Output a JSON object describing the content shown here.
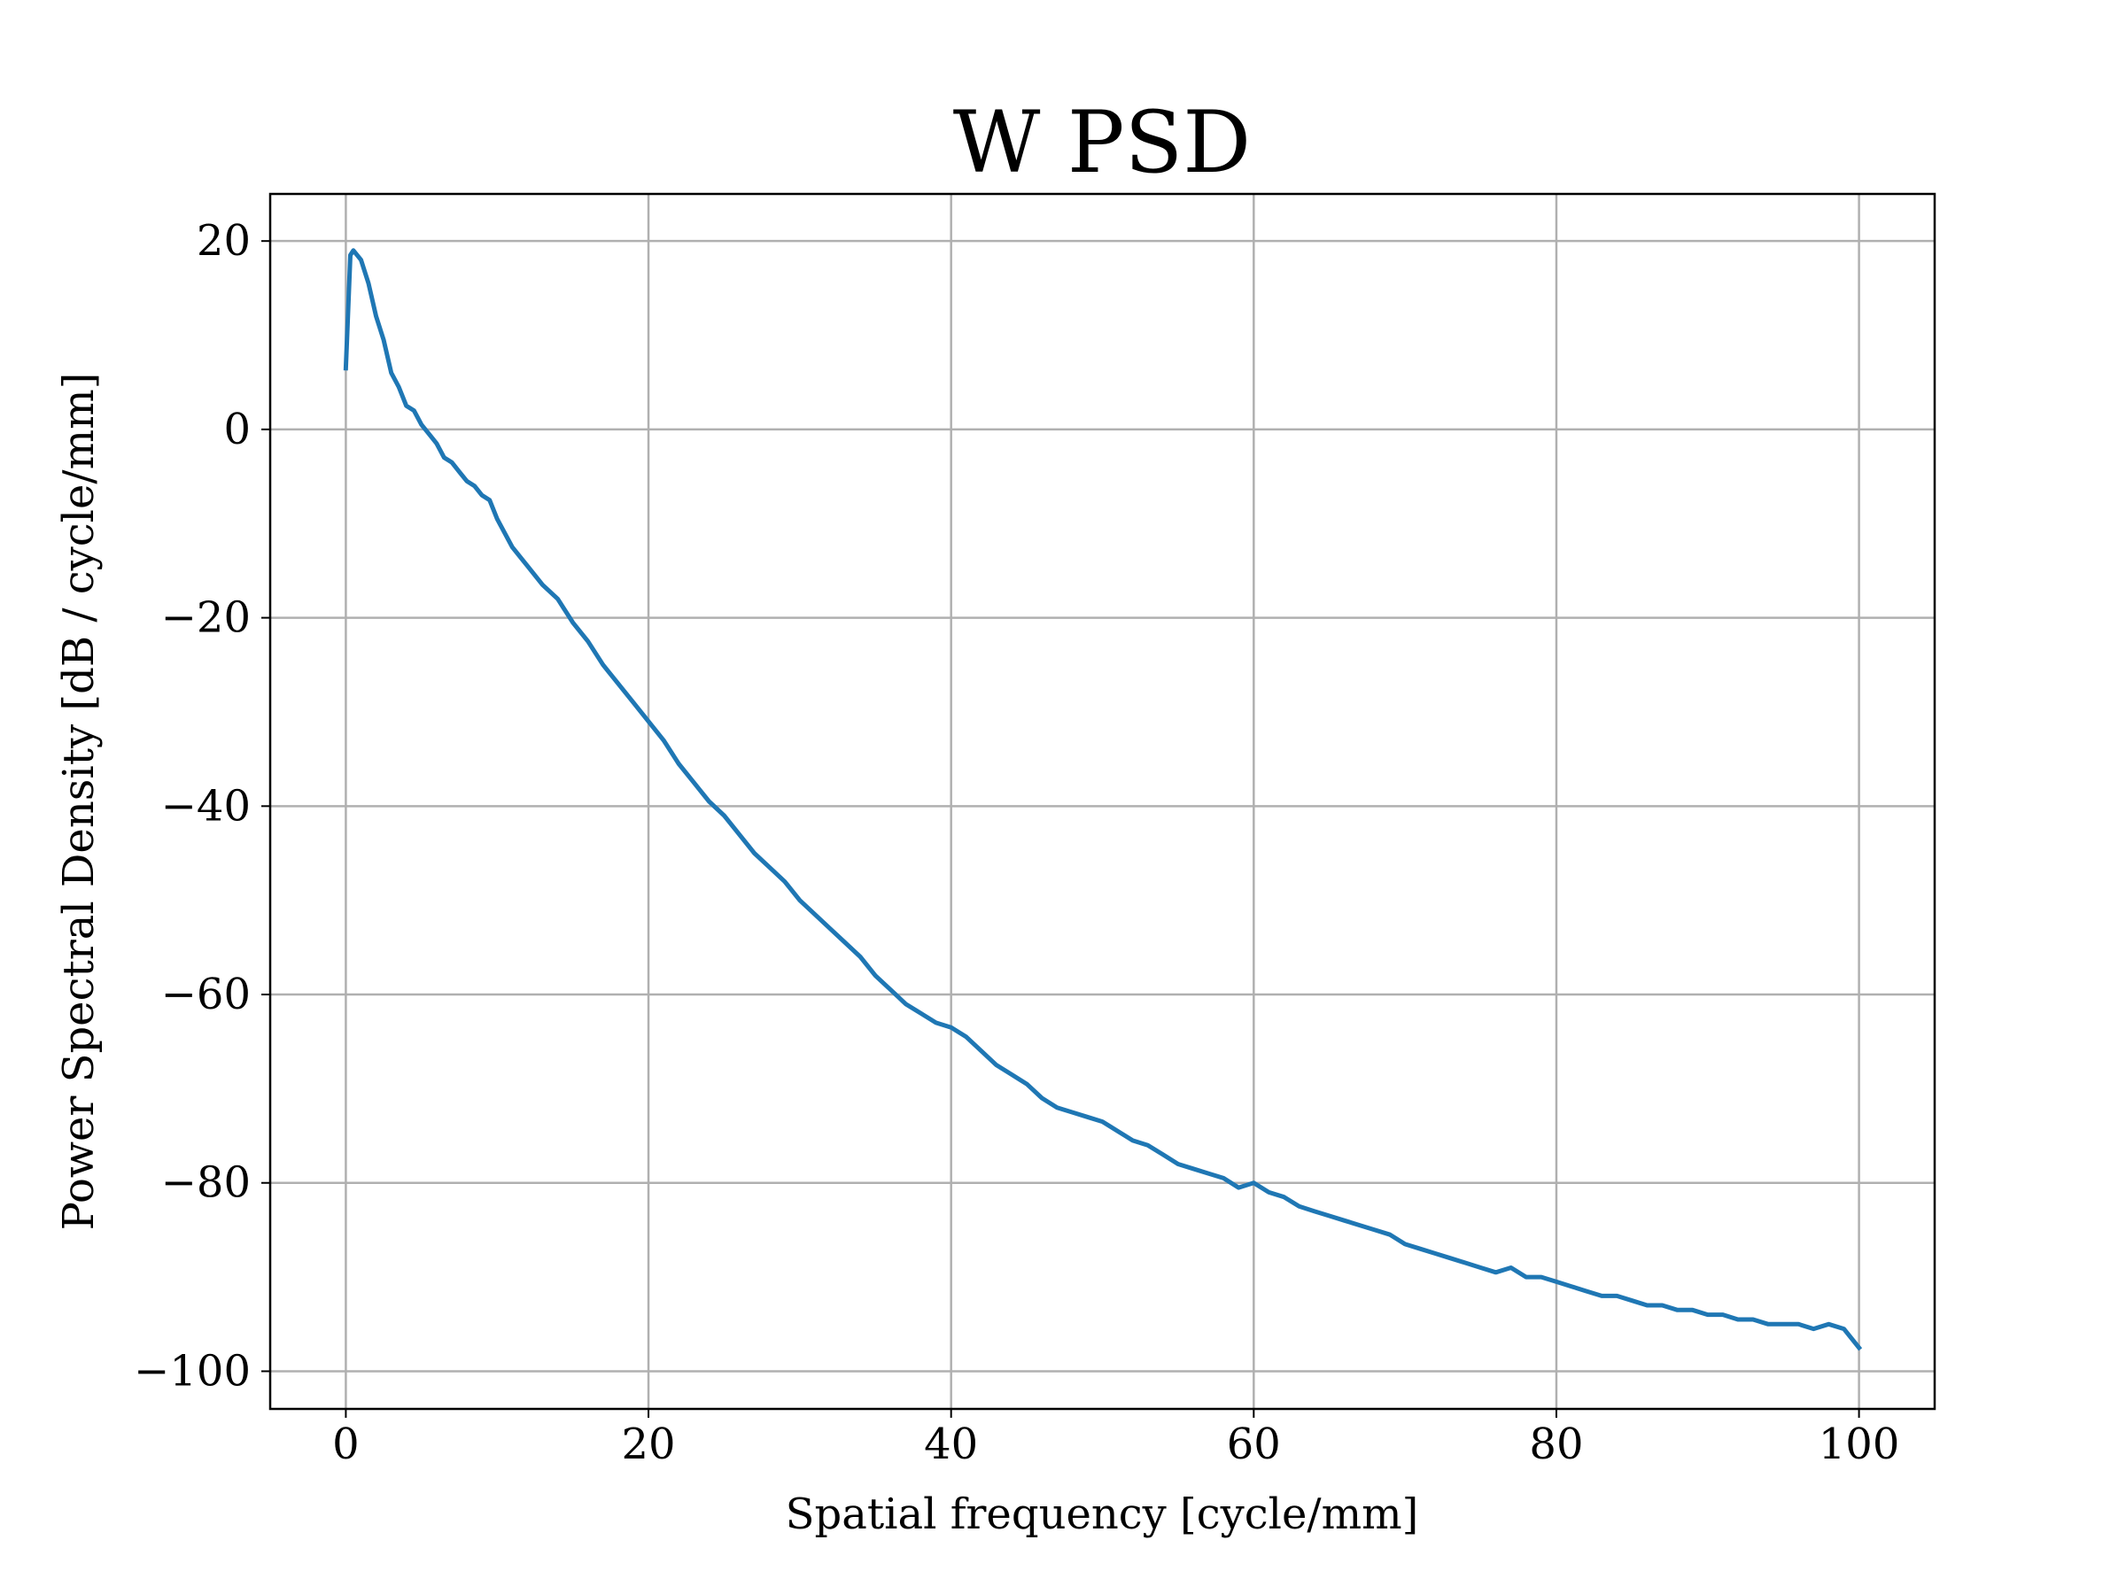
{
  "chart_data": {
    "type": "line",
    "title": "W PSD",
    "xlabel": "Spatial frequency [cycle/mm]",
    "ylabel": "Power Spectral Density [dB / cycle/mm]",
    "xlim": [
      -5,
      105
    ],
    "ylim": [
      -104,
      25
    ],
    "xticks": [
      0,
      20,
      40,
      60,
      80,
      100
    ],
    "yticks": [
      20,
      0,
      -20,
      -40,
      -60,
      -80,
      -100
    ],
    "xtick_labels": [
      "0",
      "20",
      "40",
      "60",
      "80",
      "100"
    ],
    "ytick_labels": [
      "20",
      "0",
      "−20",
      "−40",
      "−60",
      "−80",
      "−100"
    ],
    "grid": true,
    "series": [
      {
        "color": "#1f77b4",
        "x": [
          0,
          0.3,
          0.5,
          1,
          1.5,
          2,
          2.5,
          3,
          3.5,
          4,
          4.5,
          5,
          5.5,
          6,
          6.5,
          7,
          7.5,
          8,
          8.5,
          9,
          9.5,
          10,
          11,
          12,
          13,
          14,
          15,
          16,
          17,
          18,
          19,
          20,
          21,
          22,
          23,
          24,
          25,
          26,
          27,
          28,
          29,
          30,
          31,
          32,
          33,
          34,
          35,
          36,
          37,
          38,
          39,
          40,
          41,
          42,
          43,
          44,
          45,
          46,
          47,
          48,
          49,
          50,
          51,
          52,
          53,
          54,
          55,
          56,
          57,
          58,
          59,
          60,
          61,
          62,
          63,
          64,
          65,
          66,
          67,
          68,
          69,
          70,
          71,
          72,
          73,
          74,
          75,
          76,
          77,
          78,
          79,
          80,
          81,
          82,
          83,
          84,
          85,
          86,
          87,
          88,
          89,
          90,
          91,
          92,
          93,
          94,
          95,
          96,
          97,
          98,
          99,
          100
        ],
        "y": [
          6.5,
          18.5,
          19,
          18,
          15.5,
          12,
          9.5,
          6,
          4.5,
          2.5,
          2,
          0.5,
          -0.5,
          -1.5,
          -3,
          -3.5,
          -4.5,
          -5.5,
          -6,
          -7,
          -7.5,
          -9.5,
          -12.5,
          -14.5,
          -16.5,
          -18,
          -20.5,
          -22.5,
          -25,
          -27,
          -29,
          -31,
          -33,
          -35.5,
          -37.5,
          -39.5,
          -41,
          -43,
          -45,
          -46.5,
          -48,
          -50,
          -51.5,
          -53,
          -54.5,
          -56,
          -58,
          -59.5,
          -61,
          -62,
          -63,
          -63.5,
          -64.5,
          -66,
          -67.5,
          -68.5,
          -69.5,
          -71,
          -72,
          -72.5,
          -73,
          -73.5,
          -74.5,
          -75.5,
          -76,
          -77,
          -78,
          -78.5,
          -79,
          -79.5,
          -80.5,
          -80,
          -81,
          -81.5,
          -82.5,
          -83,
          -83.5,
          -84,
          -84.5,
          -85,
          -85.5,
          -86.5,
          -87,
          -87.5,
          -88,
          -88.5,
          -89,
          -89.5,
          -89,
          -90,
          -90,
          -90.5,
          -91,
          -91.5,
          -92,
          -92,
          -92.5,
          -93,
          -93,
          -93.5,
          -93.5,
          -94,
          -94,
          -94.5,
          -94.5,
          -95,
          -95,
          -95,
          -95.5,
          -95,
          -95.5,
          -97.5
        ]
      }
    ]
  }
}
